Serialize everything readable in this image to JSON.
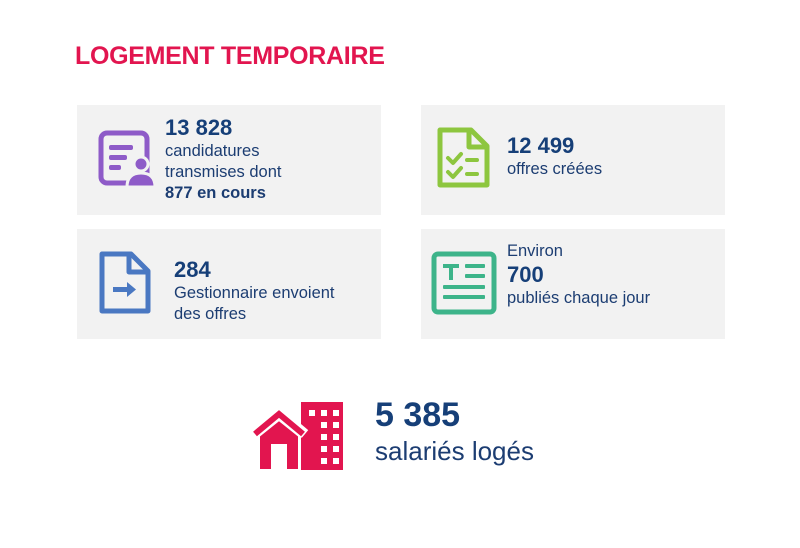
{
  "title": "LOGEMENT TEMPORAIRE",
  "cards": [
    {
      "icon": "applicant-form-icon",
      "color": "#8e5bc8",
      "number": "13 828",
      "line1": "candidatures",
      "line2": "transmises dont",
      "line3": "877 en cours"
    },
    {
      "icon": "checklist-document-icon",
      "color": "#8dc63f",
      "number": "12 499",
      "line1": "offres créées"
    },
    {
      "icon": "document-send-icon",
      "color": "#4a78c2",
      "number": "284",
      "line1": "Gestionnaire envoient",
      "line2": "des offres"
    },
    {
      "icon": "text-document-icon",
      "color": "#3db48a",
      "prefix": "Environ",
      "number": "700",
      "line1": "publiés chaque jour"
    }
  ],
  "footer": {
    "icon": "buildings-house-icon",
    "color": "#e2154f",
    "number": "5 385",
    "label": "salariés logés"
  }
}
